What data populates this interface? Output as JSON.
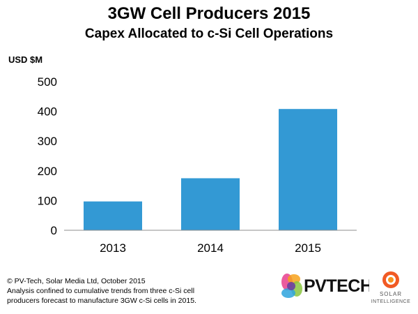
{
  "chart_data": {
    "type": "bar",
    "title": "3GW Cell Producers 2015",
    "subtitle": "Capex Allocated to c-Si Cell Operations",
    "ylabel": "USD $M",
    "xlabel": "",
    "categories": [
      "2013",
      "2014",
      "2015"
    ],
    "values": [
      97,
      175,
      408
    ],
    "ylim": [
      0,
      500
    ],
    "yticks": [
      0,
      100,
      200,
      300,
      400,
      500
    ],
    "grid": false,
    "bar_color": "#3399d4"
  },
  "footer": {
    "line1": "© PV-Tech, Solar Media Ltd, October 2015",
    "line2": "Analysis confined to cumulative trends from three c-Si cell",
    "line3": "producers forecast to manufacture 3GW c-Si cells in 2015."
  },
  "logos": {
    "pvtech": "PVTECH",
    "solar_intelligence_line1": "SOLAR",
    "solar_intelligence_line2": "INTELLIGENCE"
  }
}
